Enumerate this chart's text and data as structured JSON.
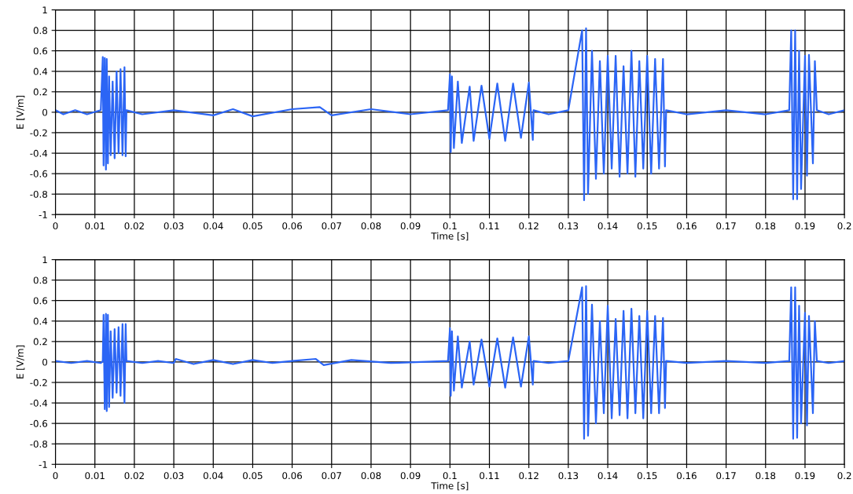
{
  "chart_data": [
    {
      "type": "line",
      "xlabel": "Time [s]",
      "ylabel": "E [V/m]",
      "xlim": [
        0,
        0.2
      ],
      "ylim": [
        -1,
        1
      ],
      "grid": true,
      "legend": false,
      "marker": "none",
      "line_style": "solid",
      "xticks": [
        0,
        0.01,
        0.02,
        0.03,
        0.04,
        0.05,
        0.06,
        0.07,
        0.08,
        0.09,
        0.1,
        0.11,
        0.12,
        0.13,
        0.14,
        0.15,
        0.16,
        0.17,
        0.18,
        0.19,
        0.2
      ],
      "yticks": [
        -1,
        -0.8,
        -0.6,
        -0.4,
        -0.2,
        0,
        0.2,
        0.4,
        0.6,
        0.8,
        1
      ],
      "series": [
        {
          "color": "#2b65f5",
          "x": [
            0,
            0.002,
            0.005,
            0.008,
            0.0115,
            0.012,
            0.0122,
            0.0125,
            0.0128,
            0.013,
            0.0133,
            0.0136,
            0.014,
            0.0145,
            0.015,
            0.0155,
            0.016,
            0.0165,
            0.017,
            0.0175,
            0.0178,
            0.018,
            0.022,
            0.03,
            0.04,
            0.045,
            0.05,
            0.06,
            0.067,
            0.07,
            0.08,
            0.09,
            0.0995,
            0.1,
            0.1002,
            0.1005,
            0.101,
            0.102,
            0.103,
            0.105,
            0.106,
            0.108,
            0.11,
            0.112,
            0.114,
            0.116,
            0.118,
            0.12,
            0.121,
            0.1212,
            0.125,
            0.13,
            0.1335,
            0.134,
            0.1345,
            0.135,
            0.136,
            0.137,
            0.138,
            0.139,
            0.14,
            0.141,
            0.142,
            0.143,
            0.144,
            0.145,
            0.146,
            0.147,
            0.148,
            0.149,
            0.15,
            0.151,
            0.152,
            0.153,
            0.154,
            0.1545,
            0.1548,
            0.16,
            0.17,
            0.18,
            0.186,
            0.1865,
            0.187,
            0.1875,
            0.188,
            0.1885,
            0.189,
            0.19,
            0.1905,
            0.191,
            0.192,
            0.1925,
            0.193,
            0.196,
            0.2
          ],
          "values": [
            0.02,
            -0.02,
            0.02,
            -0.02,
            0.02,
            0.54,
            -0.52,
            0.53,
            -0.56,
            0.52,
            -0.5,
            0.35,
            -0.42,
            0.3,
            -0.45,
            0.4,
            -0.4,
            0.42,
            -0.42,
            0.44,
            -0.43,
            0.02,
            -0.02,
            0.02,
            -0.03,
            0.03,
            -0.04,
            0.03,
            0.05,
            -0.03,
            0.03,
            -0.02,
            0.02,
            0.37,
            -0.39,
            0.35,
            -0.35,
            0.3,
            -0.3,
            0.25,
            -0.28,
            0.26,
            -0.26,
            0.28,
            -0.28,
            0.28,
            -0.25,
            0.29,
            -0.27,
            0.02,
            -0.02,
            0.02,
            0.8,
            -0.86,
            0.82,
            -0.8,
            0.6,
            -0.65,
            0.5,
            -0.6,
            0.55,
            -0.55,
            0.55,
            -0.63,
            0.45,
            -0.6,
            0.6,
            -0.63,
            0.5,
            -0.55,
            0.55,
            -0.6,
            0.52,
            -0.55,
            0.52,
            -0.53,
            0.02,
            -0.02,
            0.02,
            -0.02,
            0.02,
            0.8,
            -0.85,
            0.8,
            -0.85,
            0.6,
            -0.75,
            0.55,
            -0.62,
            0.56,
            -0.5,
            0.5,
            0.02,
            -0.02,
            0.02
          ]
        }
      ]
    },
    {
      "type": "line",
      "xlabel": "Time [s]",
      "ylabel": "E [V/m]",
      "xlim": [
        0,
        0.2
      ],
      "ylim": [
        -1,
        1
      ],
      "grid": true,
      "legend": false,
      "marker": "none",
      "line_style": "solid",
      "xticks": [
        0,
        0.01,
        0.02,
        0.03,
        0.04,
        0.05,
        0.06,
        0.07,
        0.08,
        0.09,
        0.1,
        0.11,
        0.12,
        0.13,
        0.14,
        0.15,
        0.16,
        0.17,
        0.18,
        0.19,
        0.2
      ],
      "yticks": [
        -1,
        -0.8,
        -0.6,
        -0.4,
        -0.2,
        0,
        0.2,
        0.4,
        0.6,
        0.8,
        1
      ],
      "series": [
        {
          "color": "#2b65f5",
          "x": [
            0,
            0.004,
            0.008,
            0.0115,
            0.012,
            0.0122,
            0.0125,
            0.0128,
            0.013,
            0.0133,
            0.0136,
            0.014,
            0.0145,
            0.015,
            0.0155,
            0.016,
            0.0165,
            0.017,
            0.0175,
            0.0178,
            0.018,
            0.022,
            0.026,
            0.03,
            0.0305,
            0.035,
            0.04,
            0.045,
            0.05,
            0.055,
            0.06,
            0.066,
            0.068,
            0.075,
            0.085,
            0.0995,
            0.1,
            0.1002,
            0.1005,
            0.101,
            0.102,
            0.103,
            0.105,
            0.106,
            0.108,
            0.11,
            0.112,
            0.114,
            0.116,
            0.118,
            0.12,
            0.121,
            0.1212,
            0.125,
            0.13,
            0.1335,
            0.134,
            0.1345,
            0.135,
            0.136,
            0.137,
            0.138,
            0.139,
            0.14,
            0.141,
            0.142,
            0.143,
            0.144,
            0.145,
            0.146,
            0.147,
            0.148,
            0.149,
            0.15,
            0.151,
            0.152,
            0.153,
            0.154,
            0.1545,
            0.1548,
            0.16,
            0.17,
            0.18,
            0.186,
            0.1865,
            0.187,
            0.1875,
            0.188,
            0.1885,
            0.189,
            0.19,
            0.1905,
            0.191,
            0.192,
            0.1925,
            0.193,
            0.196,
            0.2
          ],
          "values": [
            0.01,
            -0.01,
            0.01,
            -0.01,
            0.01,
            0.46,
            -0.46,
            0.47,
            -0.48,
            0.46,
            -0.44,
            0.3,
            -0.35,
            0.32,
            -0.3,
            0.34,
            -0.33,
            0.37,
            -0.4,
            0.37,
            0.01,
            -0.01,
            0.01,
            -0.01,
            0.03,
            -0.02,
            0.02,
            -0.02,
            0.02,
            -0.01,
            0.01,
            0.03,
            -0.03,
            0.02,
            -0.01,
            0.01,
            0.33,
            -0.33,
            0.3,
            -0.28,
            0.25,
            -0.25,
            0.2,
            -0.22,
            0.22,
            -0.24,
            0.23,
            -0.25,
            0.24,
            -0.24,
            0.25,
            -0.22,
            0.01,
            -0.01,
            0.01,
            0.73,
            -0.75,
            0.74,
            -0.72,
            0.56,
            -0.6,
            0.4,
            -0.5,
            0.55,
            -0.55,
            0.42,
            -0.52,
            0.5,
            -0.55,
            0.52,
            -0.5,
            0.45,
            -0.55,
            0.5,
            -0.5,
            0.45,
            -0.5,
            0.43,
            -0.45,
            0.01,
            -0.01,
            0.01,
            -0.01,
            0.01,
            0.73,
            -0.75,
            0.73,
            -0.74,
            0.55,
            -0.6,
            0.48,
            -0.62,
            0.45,
            -0.5,
            0.4,
            0.01,
            -0.01,
            0.01
          ]
        }
      ]
    }
  ]
}
